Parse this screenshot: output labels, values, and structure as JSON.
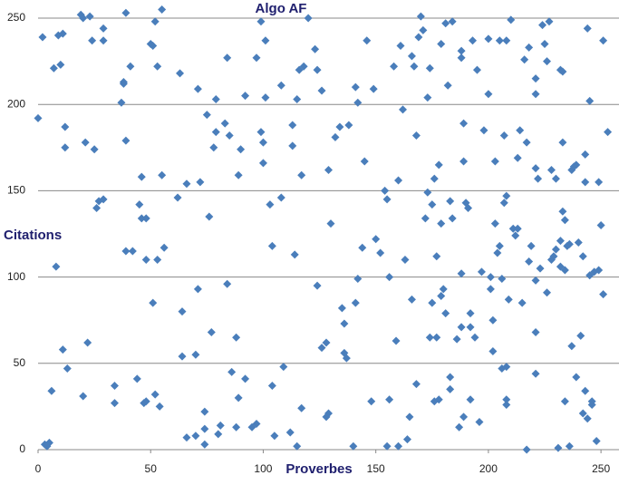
{
  "chart_data": {
    "type": "scatter",
    "title": "Algo AF",
    "x_label": "Proverbes",
    "y_label": "Citations",
    "color": "#4a7ebb",
    "grid": true,
    "xlim": [
      0,
      258
    ],
    "xticks": [
      0,
      50,
      100,
      150,
      200,
      250
    ],
    "ylim": [
      0,
      250
    ],
    "yticks": [
      0,
      50,
      100,
      150,
      200,
      250
    ],
    "x": [
      0,
      2,
      3,
      4,
      5,
      6,
      7,
      8,
      9,
      10,
      11,
      11,
      12,
      12,
      13,
      19,
      20,
      20,
      21,
      22,
      23,
      24,
      25,
      26,
      27,
      29,
      29,
      29,
      34,
      34,
      37,
      38,
      38,
      39,
      39,
      39,
      41,
      42,
      44,
      45,
      46,
      46,
      47,
      48,
      48,
      48,
      50,
      51,
      51,
      52,
      52,
      53,
      53,
      54,
      55,
      55,
      56,
      62,
      63,
      64,
      64,
      66,
      66,
      70,
      70,
      71,
      71,
      72,
      74,
      74,
      74,
      75,
      76,
      77,
      78,
      79,
      79,
      80,
      81,
      83,
      84,
      84,
      85,
      86,
      88,
      88,
      89,
      89,
      90,
      92,
      92,
      95,
      97,
      97,
      99,
      99,
      100,
      100,
      101,
      101,
      103,
      104,
      104,
      105,
      108,
      108,
      109,
      112,
      113,
      113,
      115,
      114,
      115,
      116,
      117,
      117,
      118,
      120,
      123,
      124,
      124,
      126,
      126,
      128,
      128,
      129,
      129,
      130,
      132,
      134,
      135,
      136,
      136,
      137,
      138,
      140,
      141,
      141,
      142,
      142,
      144,
      145,
      146,
      148,
      149,
      150,
      152,
      154,
      155,
      155,
      156,
      156,
      158,
      159,
      160,
      160,
      161,
      162,
      163,
      164,
      165,
      166,
      166,
      167,
      168,
      168,
      169,
      170,
      171,
      172,
      173,
      173,
      174,
      174,
      175,
      175,
      176,
      176,
      177,
      177,
      178,
      178,
      179,
      179,
      179,
      180,
      181,
      181,
      182,
      183,
      183,
      183,
      184,
      184,
      186,
      187,
      188,
      188,
      188,
      188,
      189,
      189,
      189,
      190,
      191,
      192,
      192,
      192,
      193,
      194,
      195,
      196,
      197,
      198,
      200,
      200,
      201,
      201,
      202,
      202,
      203,
      203,
      204,
      205,
      205,
      206,
      206,
      207,
      207,
      208,
      208,
      208,
      208,
      208,
      209,
      210,
      211,
      212,
      213,
      213,
      214,
      215,
      216,
      217,
      217,
      218,
      218,
      219,
      221,
      221,
      221,
      221,
      221,
      221,
      222,
      223,
      224,
      225,
      226,
      226,
      227,
      228,
      228,
      229,
      230,
      230,
      231,
      232,
      232,
      232,
      233,
      233,
      233,
      234,
      234,
      234,
      235,
      236,
      236,
      237,
      237,
      238,
      239,
      239,
      240,
      241,
      242,
      242,
      243,
      243,
      243,
      244,
      244,
      245,
      245,
      246,
      246,
      247,
      248,
      249,
      249,
      250,
      251,
      251,
      253
    ],
    "values": [
      192,
      239,
      3,
      2,
      4,
      34,
      221,
      106,
      240,
      223,
      241,
      58,
      187,
      175,
      47,
      252,
      31,
      250,
      178,
      62,
      251,
      237,
      174,
      140,
      144,
      145,
      244,
      237,
      27,
      37,
      201,
      213,
      212,
      253,
      179,
      115,
      222,
      115,
      41,
      142,
      158,
      134,
      27,
      28,
      134,
      110,
      235,
      234,
      85,
      248,
      32,
      222,
      110,
      25,
      255,
      159,
      117,
      146,
      218,
      80,
      54,
      7,
      154,
      55,
      8,
      93,
      209,
      155,
      3,
      12,
      22,
      194,
      135,
      68,
      175,
      184,
      203,
      9,
      14,
      189,
      96,
      227,
      182,
      45,
      65,
      13,
      30,
      159,
      174,
      205,
      41,
      13,
      15,
      227,
      184,
      248,
      178,
      166,
      204,
      237,
      142,
      118,
      37,
      8,
      211,
      146,
      48,
      10,
      176,
      188,
      2,
      113,
      203,
      220,
      159,
      24,
      222,
      250,
      232,
      220,
      95,
      208,
      59,
      19,
      62,
      21,
      162,
      131,
      181,
      187,
      82,
      73,
      56,
      53,
      188,
      2,
      210,
      85,
      201,
      99,
      117,
      167,
      237,
      28,
      209,
      122,
      114,
      150,
      145,
      2,
      29,
      100,
      222,
      63,
      156,
      2,
      234,
      197,
      110,
      6,
      19,
      228,
      87,
      222,
      38,
      182,
      239,
      251,
      243,
      134,
      204,
      149,
      221,
      65,
      142,
      85,
      28,
      157,
      65,
      112,
      165,
      29,
      131,
      235,
      89,
      93,
      247,
      79,
      211,
      144,
      42,
      35,
      134,
      248,
      64,
      13,
      71,
      231,
      102,
      227,
      167,
      189,
      19,
      143,
      140,
      29,
      71,
      79,
      237,
      65,
      220,
      16,
      103,
      185,
      206,
      238,
      93,
      100,
      57,
      75,
      167,
      131,
      114,
      237,
      118,
      47,
      99,
      182,
      143,
      147,
      26,
      29,
      48,
      237,
      87,
      249,
      128,
      124,
      128,
      169,
      185,
      85,
      226,
      178,
      0,
      233,
      109,
      118,
      163,
      98,
      215,
      206,
      44,
      68,
      157,
      105,
      246,
      235,
      225,
      91,
      248,
      162,
      110,
      112,
      116,
      157,
      1,
      106,
      121,
      220,
      219,
      178,
      138,
      133,
      28,
      104,
      118,
      119,
      2,
      60,
      162,
      164,
      42,
      165,
      120,
      66,
      112,
      21,
      171,
      34,
      155,
      244,
      18,
      101,
      202,
      26,
      28,
      103,
      5,
      155,
      104,
      130,
      237,
      90,
      184
    ]
  }
}
